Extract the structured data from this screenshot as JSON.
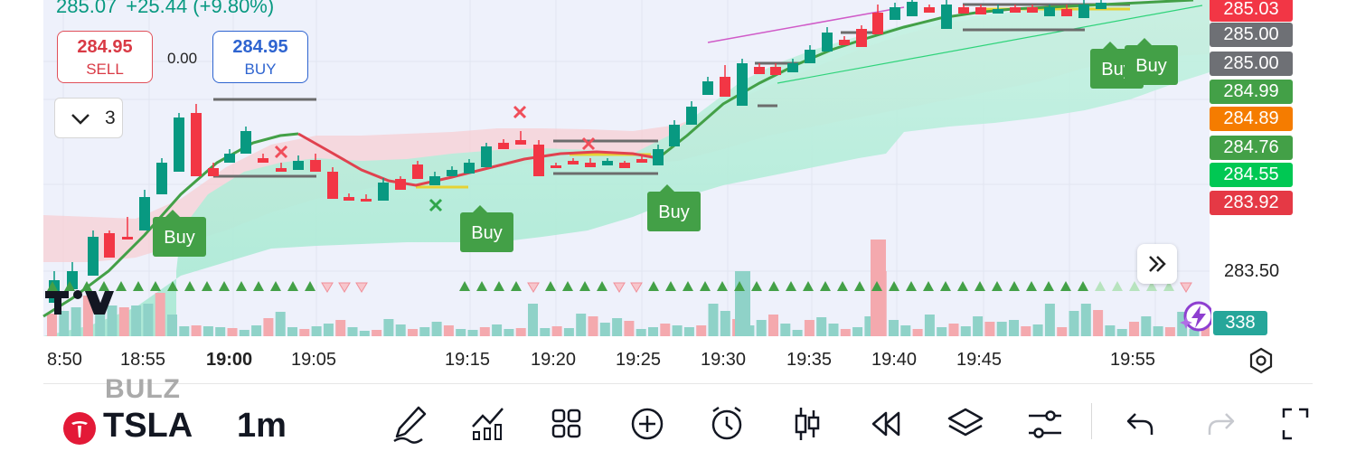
{
  "header": {
    "last_price": "285.07",
    "change": "+25.44 (+9.80%)",
    "sell_price": "284.95",
    "sell_label": "SELL",
    "spread": "0.00",
    "buy_price": "284.95",
    "buy_label": "BUY",
    "indicator_count": "3"
  },
  "signals": {
    "buy_labels": [
      "Buy",
      "Buy",
      "Buy",
      "Buy",
      "Buy"
    ]
  },
  "price_axis": {
    "tags": [
      {
        "text": "285.03",
        "color": "#f23645"
      },
      {
        "text": "285.00",
        "color": "#6e7075"
      },
      {
        "text": "285.00",
        "color": "#6e7075"
      },
      {
        "text": "284.99",
        "color": "#43a047"
      },
      {
        "text": "284.89",
        "color": "#f57c00"
      },
      {
        "text": "284.76",
        "color": "#43a047"
      },
      {
        "text": "284.55",
        "color": "#00c853"
      },
      {
        "text": "283.92",
        "color": "#e53945"
      }
    ],
    "tick": "283.50",
    "volume": "338",
    "volume_color": "#26a69a"
  },
  "time_axis": {
    "labels": [
      "8:50",
      "18:55",
      "19:00",
      "19:05",
      "19:15",
      "19:20",
      "19:25",
      "19:30",
      "19:35",
      "19:40",
      "19:45",
      "19:55"
    ]
  },
  "toolbar": {
    "ghost_text": "BULZ",
    "symbol": "TSLA",
    "interval": "1m",
    "icons": [
      "pencil-icon",
      "indicators-icon",
      "grid-icon",
      "add-icon",
      "alarm-icon",
      "candles-icon",
      "replay-icon",
      "layers-icon",
      "settings-sliders-icon",
      "undo-icon",
      "redo-icon",
      "fullscreen-icon"
    ]
  },
  "colors": {
    "up": "#089981",
    "down": "#f23645",
    "ma_line": "#43a047",
    "cloud": "#b2ecd9",
    "background": "#ffffff"
  }
}
